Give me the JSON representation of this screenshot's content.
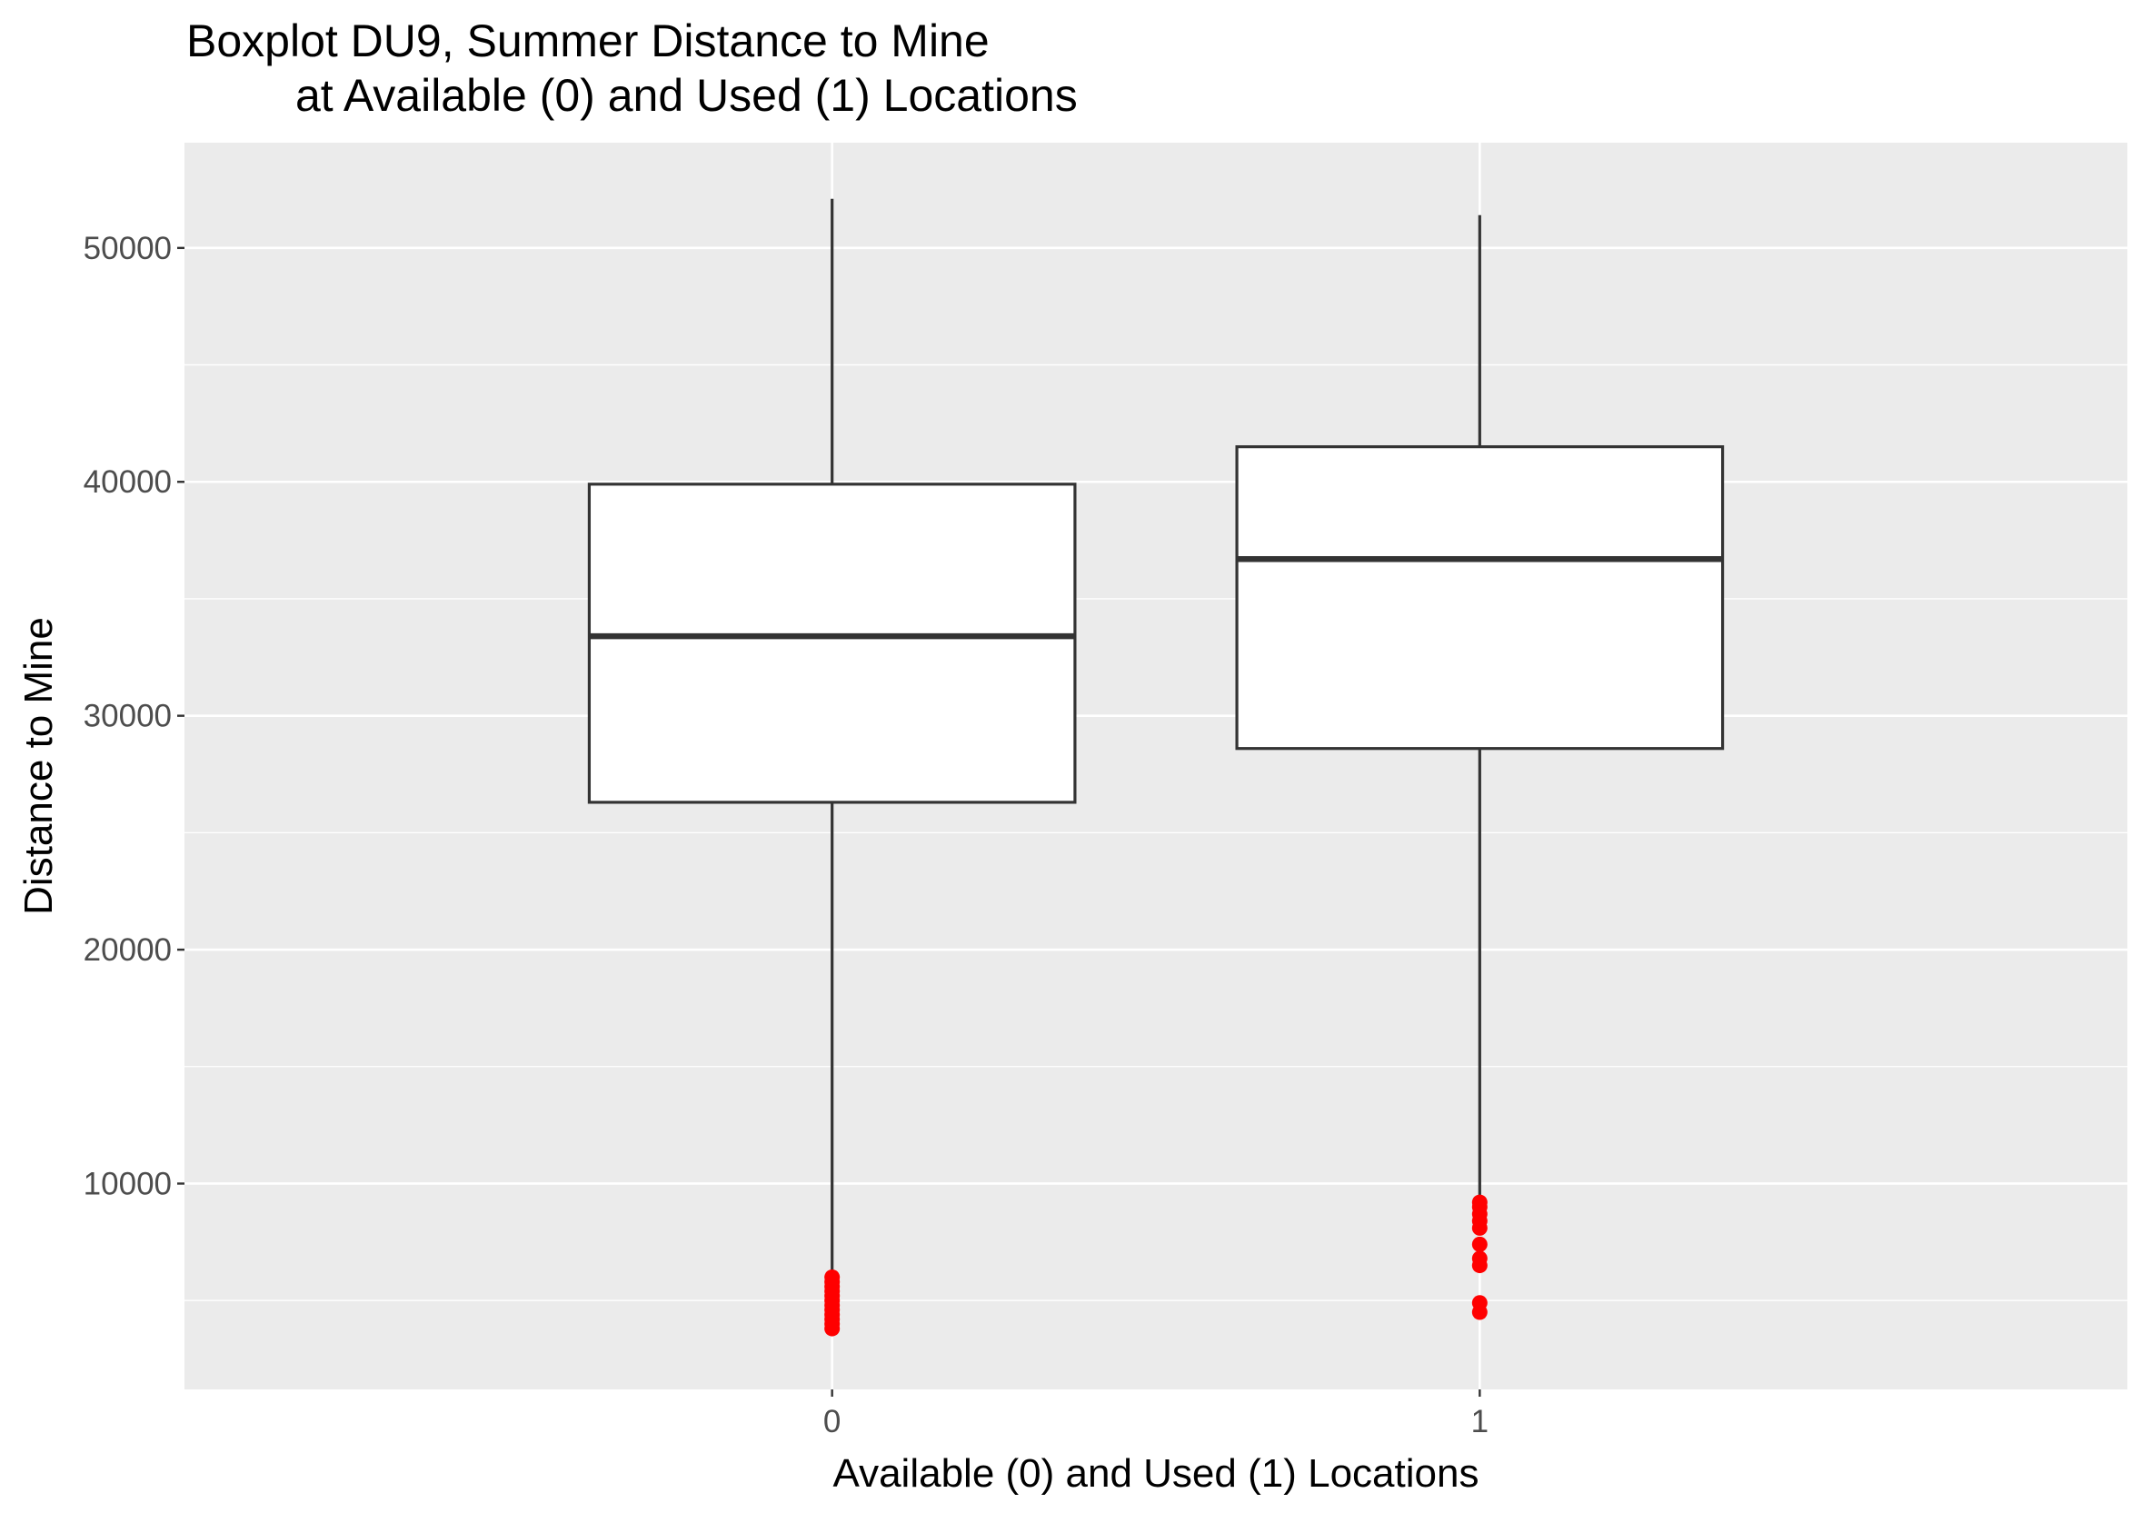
{
  "chart_data": {
    "type": "boxplot",
    "title": "Boxplot DU9, Summer Distance to Mine",
    "subtitle": "at Available (0) and Used (1) Locations",
    "xlabel": "Available (0) and Used (1) Locations",
    "ylabel": "Distance to Mine",
    "ylim": [
      1200,
      54500
    ],
    "yticks": [
      10000,
      20000,
      30000,
      40000,
      50000
    ],
    "ytick_labels": [
      "10000",
      "20000",
      "30000",
      "40000",
      "50000"
    ],
    "grid": true,
    "legend": "none",
    "categories": [
      "0",
      "1"
    ],
    "boxes": [
      {
        "category": "0",
        "whisker_low": 6100,
        "q1": 26300,
        "median": 33400,
        "q3": 39900,
        "whisker_high": 52100,
        "outliers": [
          3800,
          4000,
          4200,
          4400,
          4600,
          4800,
          5000,
          5200,
          5400,
          5600,
          5800,
          6000
        ]
      },
      {
        "category": "1",
        "whisker_low": 9300,
        "q1": 28600,
        "median": 36700,
        "q3": 41500,
        "whisker_high": 51400,
        "outliers": [
          4500,
          4900,
          6500,
          6800,
          7400,
          8100,
          8400,
          8700,
          9000,
          9200
        ]
      }
    ],
    "colors": {
      "panel_background": "#ebebeb",
      "grid_line": "#ffffff",
      "box_fill": "#ffffff",
      "box_line": "#333333",
      "outlier": "#ff0000"
    }
  }
}
